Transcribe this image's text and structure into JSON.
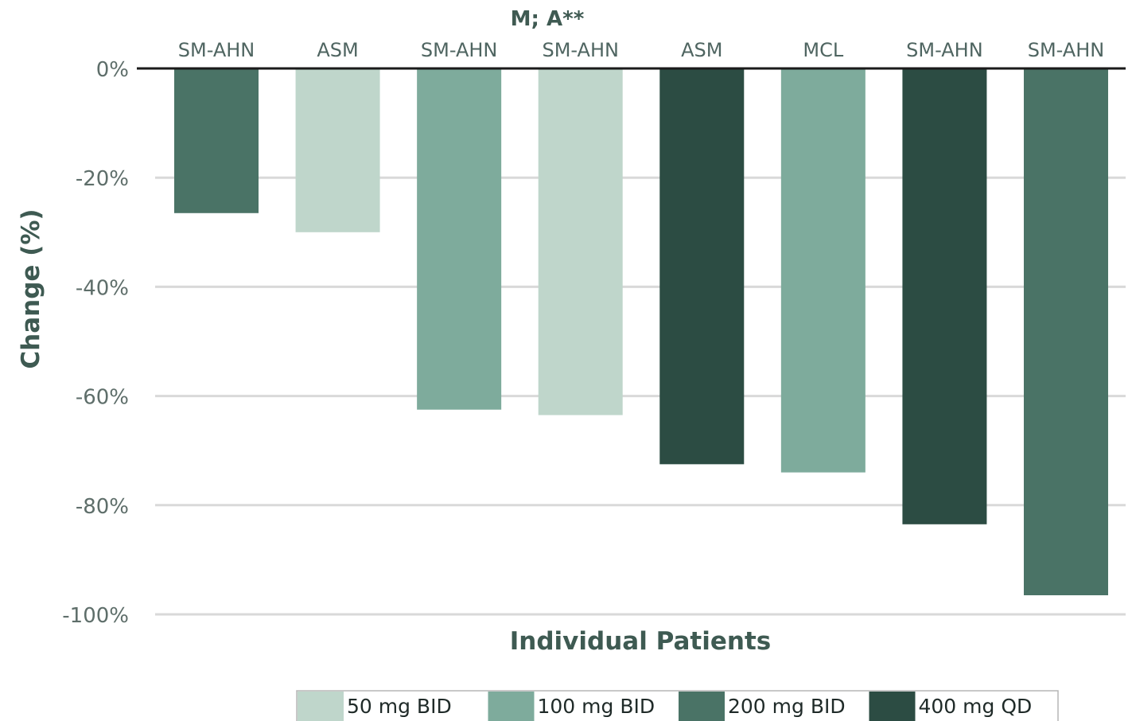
{
  "chart_data": {
    "type": "bar",
    "title": "M; A**",
    "xlabel": "Individual Patients",
    "ylabel": "Change (%)",
    "ylim": [
      -100,
      0
    ],
    "yticks": [
      0,
      -20,
      -40,
      -60,
      -80,
      -100
    ],
    "ytick_labels": [
      "0%",
      "-20%",
      "-40%",
      "-60%",
      "-80%",
      "-100%"
    ],
    "grid": true,
    "legend_position": "bottom",
    "categories": [
      "SM-AHN",
      "ASM",
      "SM-AHN",
      "SM-AHN",
      "ASM",
      "MCL",
      "SM-AHN",
      "SM-AHN"
    ],
    "values": [
      -26.5,
      -30,
      -62.5,
      -63.5,
      -72.5,
      -74,
      -83.5,
      -96.5
    ],
    "dose_groups": [
      "200 mg BID",
      "50 mg BID",
      "100 mg BID",
      "50 mg BID",
      "400 mg QD",
      "100 mg BID",
      "400 mg QD",
      "200 mg BID"
    ],
    "legend": [
      {
        "name": "50 mg BID",
        "color": "#bfd6cb"
      },
      {
        "name": "100 mg BID",
        "color": "#7eab9c"
      },
      {
        "name": "200 mg BID",
        "color": "#4a7366"
      },
      {
        "name": "400 mg QD",
        "color": "#2c4c43"
      }
    ]
  },
  "colors": {
    "text": "#5e6e6a",
    "title": "#3f5a52",
    "grid": "#d9d9d9",
    "axis": "#1a1a1a"
  }
}
